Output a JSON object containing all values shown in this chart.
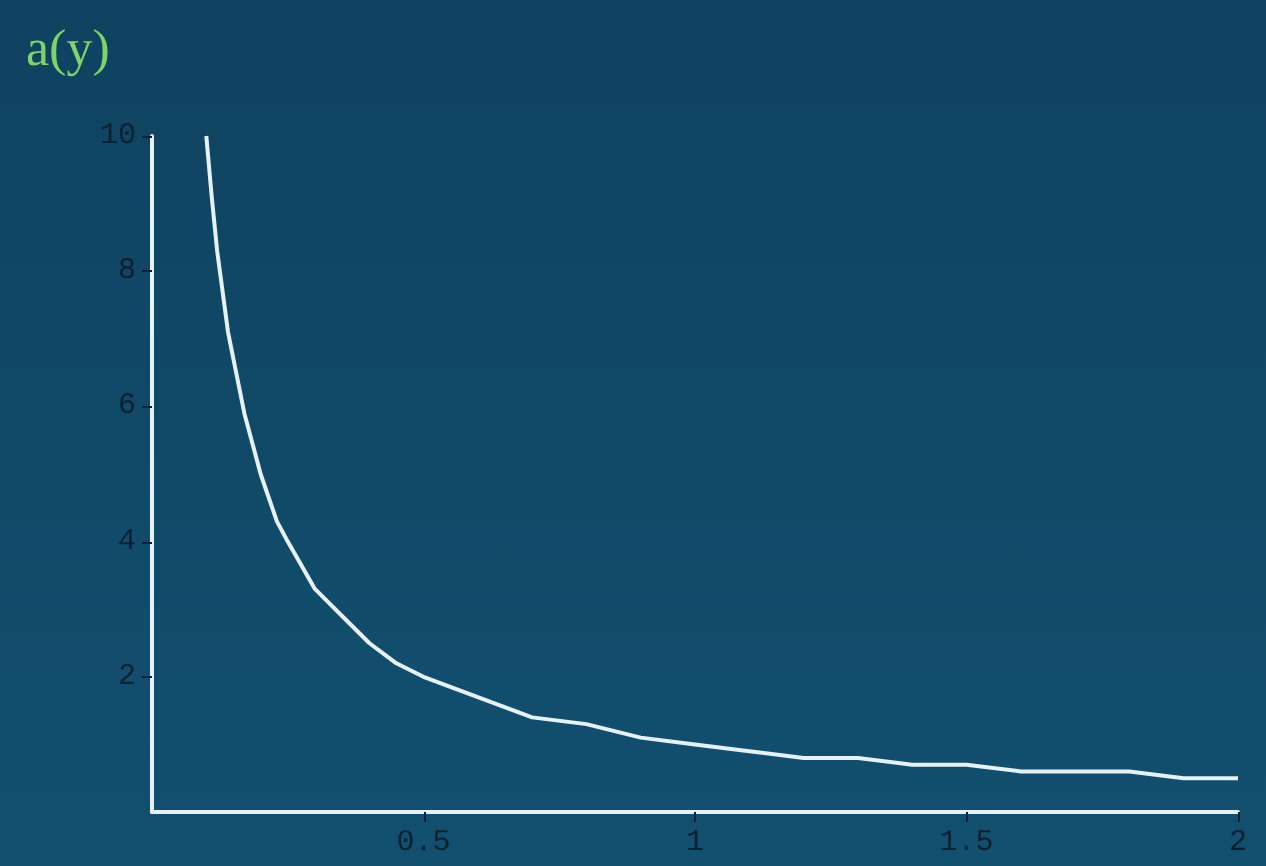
{
  "chart_data": {
    "type": "line",
    "ylabel": "a(y)",
    "x": [
      0.1,
      0.11,
      0.12,
      0.13,
      0.14,
      0.15,
      0.17,
      0.2,
      0.23,
      0.25,
      0.3,
      0.35,
      0.4,
      0.45,
      0.5,
      0.6,
      0.7,
      0.8,
      0.9,
      1,
      1.1,
      1.2,
      1.3,
      1.4,
      1.5,
      1.6,
      1.7,
      1.8,
      1.9,
      2
    ],
    "series": [
      {
        "color": "#e6f2f8",
        "values": [
          10,
          9.1,
          8.3,
          7.7,
          7.1,
          6.7,
          5.9,
          5,
          4.3,
          4,
          3.3,
          2.9,
          2.5,
          2.2,
          2,
          1.7,
          1.4,
          1.3,
          1.1,
          1,
          0.9,
          0.8,
          0.8,
          0.7,
          0.7,
          0.6,
          0.6,
          0.6,
          0.5,
          0.5
        ]
      }
    ],
    "xlim": [
      0,
      2
    ],
    "xticks": [
      0.5,
      1,
      1.5,
      2
    ],
    "ylim": [
      0,
      10
    ],
    "yticks": [
      2,
      4,
      6,
      8,
      10
    ],
    "grid": false,
    "marker": "none",
    "line_style": "solid"
  }
}
